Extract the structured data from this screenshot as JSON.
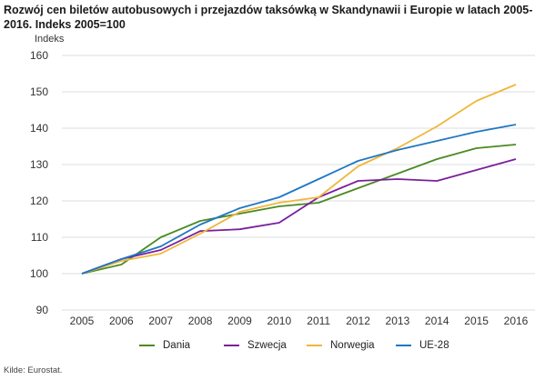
{
  "title": "Rozwój cen biletów autobusowych i przejazdów taksówką w Skandynawii i Europie w latach 2005-2016. Indeks 2005=100",
  "source": "Kilde: Eurostat.",
  "chart_data": {
    "type": "line",
    "title": "Rozwój cen biletów autobusowych i przejazdów taksówką w Skandynawii i Europie w latach 2005-2016. Indeks 2005=100",
    "ylabel": "Indeks",
    "xlabel": "",
    "ylim": [
      90,
      160
    ],
    "yticks": [
      90,
      100,
      110,
      120,
      130,
      140,
      150,
      160
    ],
    "x": [
      "2005",
      "2006",
      "2007",
      "2008",
      "2009",
      "2010",
      "2011",
      "2012",
      "2013",
      "2014",
      "2015",
      "2016"
    ],
    "grid": true,
    "legend_position": "bottom",
    "series": [
      {
        "name": "Dania",
        "color": "#4a8a22",
        "values": [
          100,
          102.5,
          110,
          114.5,
          116.5,
          118.5,
          119.5,
          123.5,
          127.5,
          131.5,
          134.5,
          135.5
        ]
      },
      {
        "name": "Szwecja",
        "color": "#7b1f9c",
        "values": [
          100,
          104,
          106.5,
          111.7,
          112.2,
          114,
          121,
          125.5,
          126,
          125.5,
          128.5,
          131.5
        ]
      },
      {
        "name": "Norwegia",
        "color": "#f0b63a",
        "values": [
          100,
          103.5,
          105.5,
          111,
          117,
          119.5,
          121,
          129.5,
          134.5,
          140.5,
          147.5,
          152
        ]
      },
      {
        "name": "UE-28",
        "color": "#1f77c4",
        "values": [
          100,
          104,
          107.5,
          113.5,
          118,
          121,
          126,
          131,
          134,
          136.5,
          139,
          141
        ]
      }
    ]
  }
}
